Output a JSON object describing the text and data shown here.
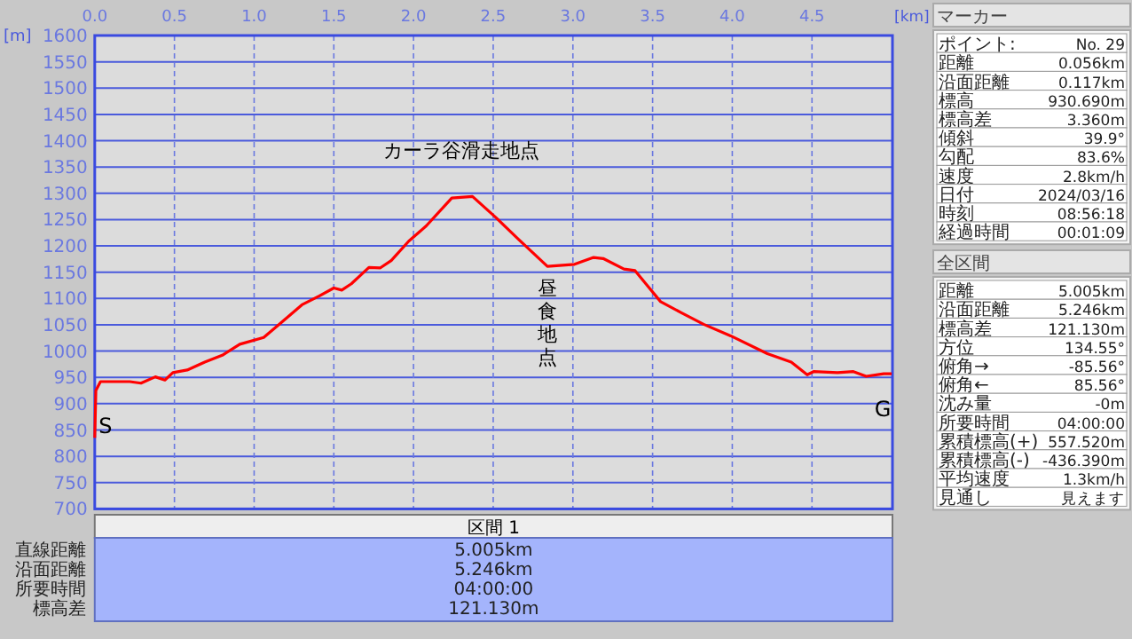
{
  "chart_data": [
    {
      "type": "line",
      "xlabel": "[km]",
      "ylabel": "[m]",
      "xlim": [
        0,
        5.005
      ],
      "ylim": [
        700,
        1600
      ],
      "xticks": [
        {
          "value": 0,
          "label": "0.0"
        },
        {
          "value": 0.5,
          "label": "0.5"
        },
        {
          "value": 1,
          "label": "1.0"
        },
        {
          "value": 1.5,
          "label": "1.5"
        },
        {
          "value": 2,
          "label": "2.0"
        },
        {
          "value": 2.5,
          "label": "2.5"
        },
        {
          "value": 3,
          "label": "3.0"
        },
        {
          "value": 3.5,
          "label": "3.5"
        },
        {
          "value": 4,
          "label": "4.0"
        },
        {
          "value": 4.5,
          "label": "4.5"
        }
      ],
      "yticks": [
        700,
        750,
        800,
        850,
        900,
        950,
        1000,
        1050,
        1100,
        1150,
        1200,
        1250,
        1300,
        1350,
        1400,
        1450,
        1500,
        1550,
        1600
      ],
      "grid": true,
      "marker": "none",
      "line_style": "solid",
      "series": [
        {
          "color": "#ff0000",
          "x": [
            0,
            0.007,
            0.036,
            0.08,
            0.22,
            0.29,
            0.38,
            0.44,
            0.49,
            0.58,
            0.69,
            0.8,
            0.91,
            1.06,
            1.17,
            1.3,
            1.41,
            1.5,
            1.55,
            1.61,
            1.72,
            1.79,
            1.86,
            1.97,
            2.08,
            2.24,
            2.37,
            2.52,
            2.66,
            2.84,
            3.01,
            3.13,
            3.19,
            3.32,
            3.39,
            3.46,
            3.55,
            3.68,
            3.82,
            3.99,
            4.22,
            4.37,
            4.47,
            4.51,
            4.66,
            4.76,
            4.84,
            4.95,
            5.0
          ],
          "values": [
            835,
            925,
            942,
            942,
            942,
            939,
            951,
            945,
            959,
            964,
            979,
            992,
            1013,
            1026,
            1054,
            1088,
            1105,
            1120,
            1116,
            1128,
            1159,
            1158,
            1172,
            1209,
            1238,
            1291,
            1294,
            1253,
            1212,
            1161,
            1165,
            1178,
            1176,
            1156,
            1153,
            1127,
            1094,
            1073,
            1051,
            1029,
            995,
            979,
            955,
            961,
            959,
            961,
            952,
            957,
            957
          ]
        }
      ],
      "annotations": [
        {
          "text": "カーラ谷滑走地点",
          "x": 2.3,
          "y": 1294
        },
        {
          "text": "昼食地点",
          "x": 2.84,
          "y": 1161
        },
        {
          "text": "S",
          "x": 0,
          "y": 925
        },
        {
          "text": "G",
          "x": 5.0,
          "y": 957
        }
      ]
    },
    {
      "type": "other",
      "title": "マーカー",
      "annotations": [
        "ポイント:",
        "No. 29",
        "距離",
        "0.056km",
        "沿面距離",
        "0.117km",
        "標高",
        "930.690m",
        "標高差",
        "3.360m",
        "傾斜",
        "39.9°",
        "勾配",
        "83.6%",
        "速度",
        "2.8km/h",
        "日付",
        "2024/03/16",
        "時刻",
        "08:56:18",
        "経過時間",
        "00:01:09"
      ]
    },
    {
      "type": "other",
      "title": "全区間",
      "annotations": [
        "距離",
        "5.005km",
        "沿面距離",
        "5.246km",
        "標高差",
        "121.130m",
        "方位",
        "134.55°",
        "俯角→",
        "-85.56°",
        "俯角←",
        "85.56°",
        "沈み量",
        "-0m",
        "所要時間",
        "04:00:00",
        "累積標高(+)",
        "557.520m",
        "累積標高(-)",
        "-436.390m",
        "平均速度",
        "1.3km/h",
        "見通し",
        "見えます"
      ]
    },
    {
      "type": "other",
      "title": "区間 1",
      "annotations": [
        "直線距離",
        "5.005km",
        "沿面距離",
        "5.246km",
        "所要時間",
        "04:00:00",
        "標高差",
        "121.130m"
      ]
    }
  ]
}
